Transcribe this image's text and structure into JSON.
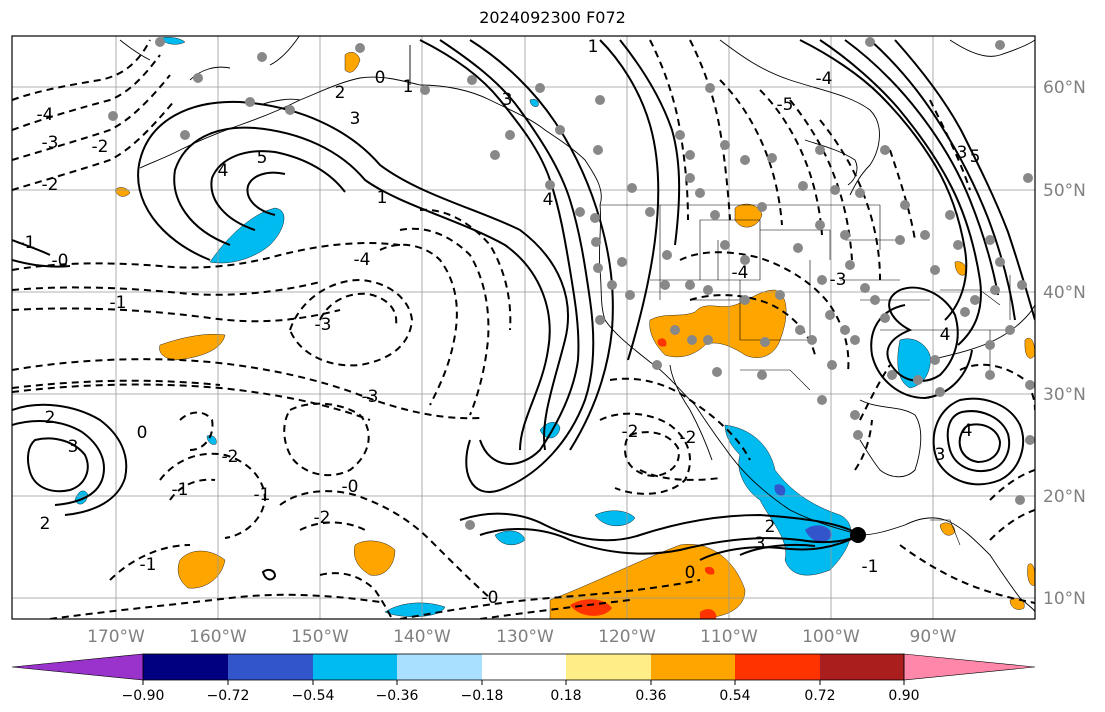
{
  "title": "2024092300 F072",
  "lat_labels": [
    "60°N",
    "50°N",
    "40°N",
    "30°N",
    "20°N",
    "10°N"
  ],
  "lon_labels": [
    "170°W",
    "160°W",
    "150°W",
    "140°W",
    "130°W",
    "120°W",
    "110°W",
    "100°W",
    "90°W"
  ],
  "colorbar": {
    "colors": [
      "#9933cc",
      "#000080",
      "#3355cc",
      "#00bbf0",
      "#aae0ff",
      "#ffffff",
      "#ffee88",
      "#ffa500",
      "#ff3300",
      "#aa1e1e",
      "#ff88aa"
    ],
    "tick_labels": [
      "−0.90",
      "−0.72",
      "−0.54",
      "−0.36",
      "−0.18",
      "0.18",
      "0.36",
      "0.54",
      "0.72",
      "0.90"
    ]
  },
  "contour_labels": {
    "solid": [
      "3",
      "4",
      "5",
      "1",
      "2",
      "3",
      "4",
      "0",
      "1",
      "2",
      "3",
      "4",
      "5",
      "3",
      "4",
      "0",
      "2",
      "3",
      "1",
      "3",
      "2",
      "0"
    ],
    "dashed": [
      "-4",
      "-3",
      "-2",
      "-2",
      "-1",
      "-0",
      "-1",
      "-3",
      "-4",
      "-3",
      "-2",
      "-1",
      "-2",
      "-0",
      "-2",
      "-2",
      "-1",
      "-1",
      "-5",
      "-4",
      "-3",
      "-4",
      "-0",
      "-1"
    ]
  },
  "marker": {
    "type": "storm-center"
  }
}
